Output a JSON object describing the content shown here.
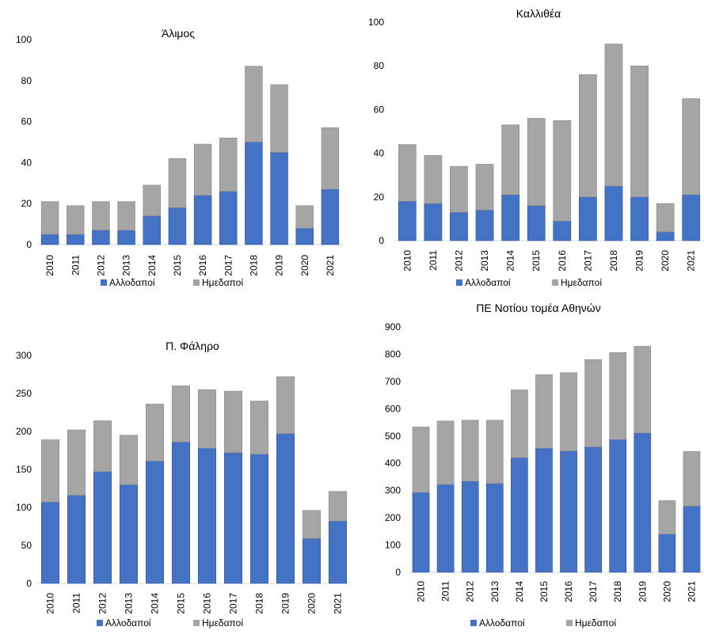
{
  "colors": {
    "foreign": "#4472C4",
    "foreign_edge": "#2E55A0",
    "native": "#A5A5A5",
    "native_edge": "#8C8C8C",
    "axis_text": "#000000",
    "axis_line": "#D9D9D9",
    "background": "#ffffff"
  },
  "chart_data": [
    {
      "type": "bar",
      "stacked": true,
      "title": "Άλιμος",
      "categories": [
        "2010",
        "2011",
        "2012",
        "2013",
        "2014",
        "2015",
        "2016",
        "2017",
        "2018",
        "2019",
        "2020",
        "2021"
      ],
      "ylim": [
        0,
        100
      ],
      "yticks": [
        0,
        20,
        40,
        60,
        80,
        100
      ],
      "grid": false,
      "legend": "bottom",
      "series": [
        {
          "name": "Αλλοδαποί",
          "color": "#4472C4",
          "values": [
            5,
            5,
            7,
            7,
            14,
            18,
            24,
            26,
            50,
            45,
            8,
            27
          ]
        },
        {
          "name": "Ημεδαποί",
          "color": "#A5A5A5",
          "values": [
            16,
            14,
            14,
            14,
            15,
            24,
            25,
            26,
            37,
            33,
            11,
            30
          ]
        }
      ]
    },
    {
      "type": "bar",
      "stacked": true,
      "title": "Καλλιθέα",
      "categories": [
        "2010",
        "2011",
        "2012",
        "2013",
        "2014",
        "2015",
        "2016",
        "2017",
        "2018",
        "2019",
        "2020",
        "2021"
      ],
      "ylim": [
        0,
        100
      ],
      "yticks": [
        0,
        20,
        40,
        60,
        80,
        100
      ],
      "grid": false,
      "legend": "bottom",
      "series": [
        {
          "name": "Αλλοδαποί",
          "color": "#4472C4",
          "values": [
            18,
            17,
            13,
            14,
            21,
            16,
            9,
            20,
            25,
            20,
            4,
            21
          ]
        },
        {
          "name": "Ημεδαποί",
          "color": "#A5A5A5",
          "values": [
            26,
            22,
            21,
            21,
            32,
            40,
            46,
            56,
            65,
            60,
            13,
            44
          ]
        }
      ]
    },
    {
      "type": "bar",
      "stacked": true,
      "title": "Π. Φάληρο",
      "categories": [
        "2010",
        "2011",
        "2012",
        "2013",
        "2014",
        "2015",
        "2016",
        "2017",
        "2018",
        "2019",
        "2020",
        "2021"
      ],
      "ylim": [
        0,
        300
      ],
      "yticks": [
        0,
        50,
        100,
        150,
        200,
        250,
        300
      ],
      "grid": false,
      "legend": "bottom",
      "series": [
        {
          "name": "Αλλοδαποί",
          "color": "#4472C4",
          "values": [
            107,
            116,
            147,
            130,
            161,
            186,
            178,
            172,
            170,
            197,
            59,
            82
          ]
        },
        {
          "name": "Ημεδαποί",
          "color": "#A5A5A5",
          "values": [
            82,
            86,
            67,
            65,
            75,
            74,
            77,
            81,
            70,
            75,
            37,
            39
          ]
        }
      ]
    },
    {
      "type": "bar",
      "stacked": true,
      "title": "ΠΕ Νοτίου τομέα Αθηνών",
      "categories": [
        "2010",
        "2011",
        "2012",
        "2013",
        "2014",
        "2015",
        "2016",
        "2017",
        "2018",
        "2019",
        "2020",
        "2021"
      ],
      "ylim": [
        0,
        900
      ],
      "yticks": [
        0,
        100,
        200,
        300,
        400,
        500,
        600,
        700,
        800,
        900
      ],
      "grid": false,
      "legend": "bottom",
      "series": [
        {
          "name": "Αλλοδαποί",
          "color": "#4472C4",
          "values": [
            293,
            322,
            334,
            326,
            420,
            455,
            445,
            460,
            487,
            511,
            140,
            243
          ]
        },
        {
          "name": "Ημεδαποί",
          "color": "#A5A5A5",
          "values": [
            240,
            233,
            224,
            232,
            249,
            270,
            287,
            320,
            319,
            318,
            123,
            200
          ]
        }
      ]
    }
  ]
}
